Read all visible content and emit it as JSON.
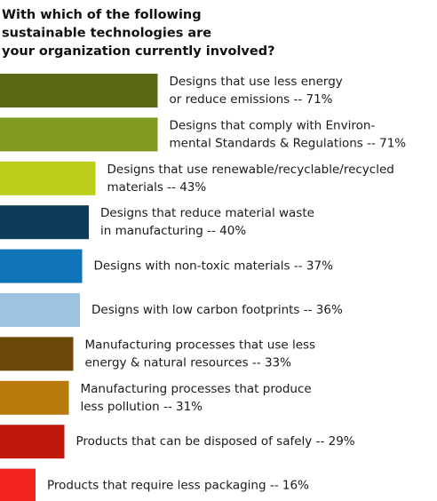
{
  "chart_data": {
    "type": "hbar",
    "title": [
      "With which of the following",
      "sustainable technologies are",
      "your organization currently involved?"
    ],
    "categories": [
      [
        "Designs that use less energy",
        "or reduce emissions -- 71%"
      ],
      [
        "Designs that comply with Environ-",
        "mental Standards & Regulations -- 71%"
      ],
      [
        "Designs that use renewable/recyclable/recycled",
        "materials -- 43%"
      ],
      [
        "Designs that reduce material waste",
        "in manufacturing -- 40%"
      ],
      [
        "Designs with non-toxic materials -- 37%"
      ],
      [
        "Designs with low carbon footprints -- 36%"
      ],
      [
        "Manufacturing processes that use less",
        "energy & natural resources -- 33%"
      ],
      [
        "Manufacturing processes that produce",
        "less pollution -- 31%"
      ],
      [
        "Products that can be disposed of safely -- 29%"
      ],
      [
        "Products that require less packaging -- 16%"
      ]
    ],
    "values": [
      71,
      71,
      43,
      40,
      37,
      36,
      33,
      31,
      29,
      16
    ],
    "colors": [
      "#5a6a14",
      "#7f9a1f",
      "#bcce1a",
      "#0d3b5c",
      "#0f74b8",
      "#9dc3e1",
      "#6d4907",
      "#b87a0c",
      "#bf190e",
      "#f2231a"
    ]
  }
}
